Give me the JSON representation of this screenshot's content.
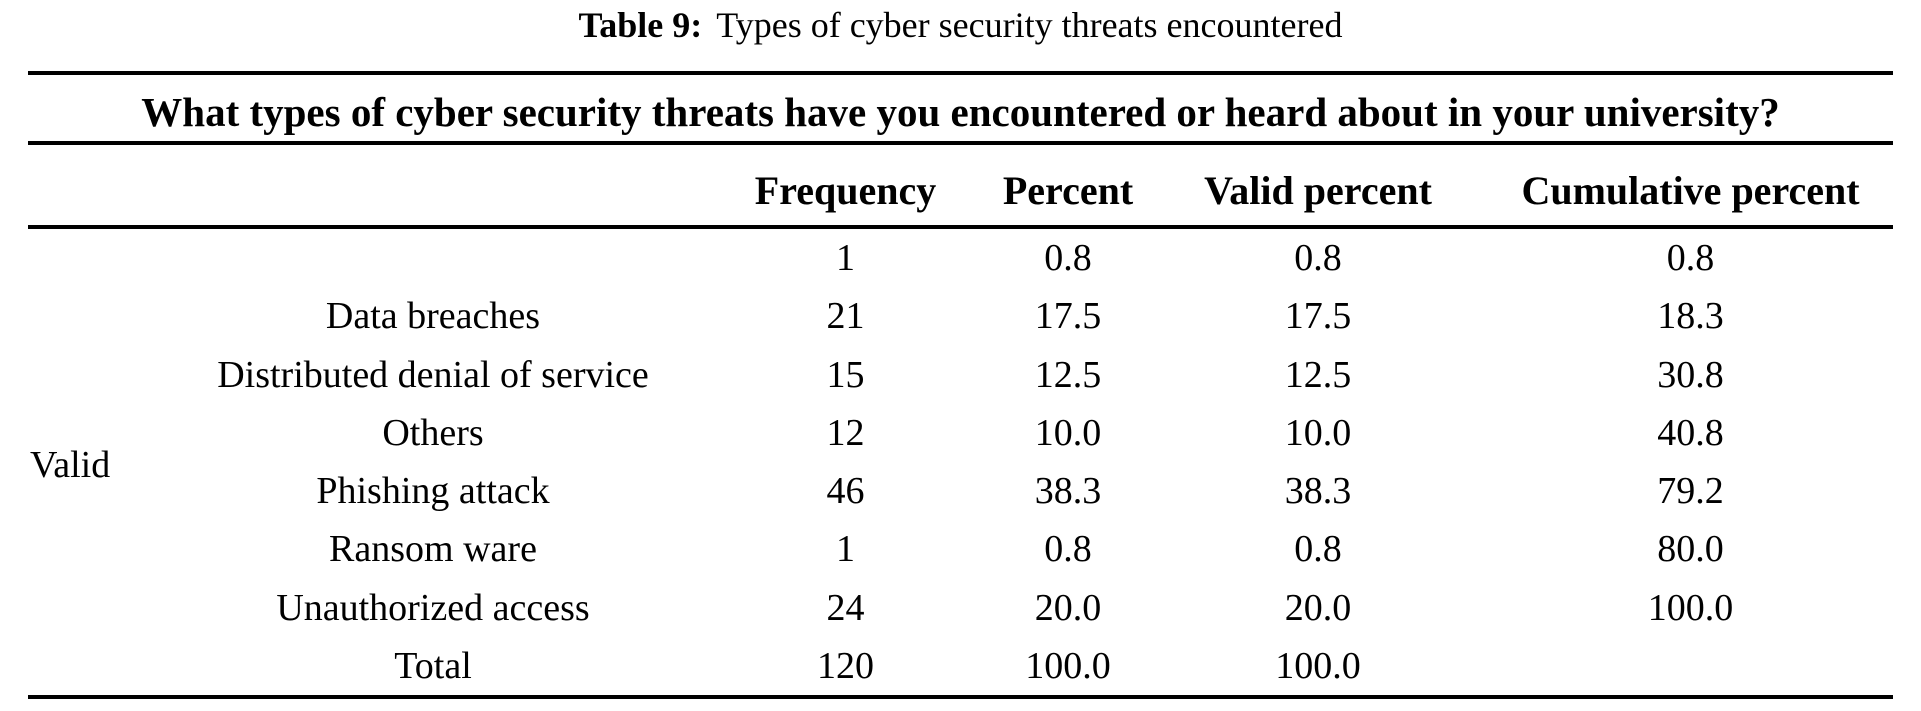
{
  "caption": {
    "label": "Table 9:",
    "text": "Types of cyber security threats encountered"
  },
  "colors": {
    "text": "#000000",
    "background": "#ffffff",
    "rule": "#000000"
  },
  "table": {
    "question": "What types of cyber security threats have you encountered or heard about in your university?",
    "group_label": "Valid",
    "columns": [
      "Frequency",
      "Percent",
      "Valid percent",
      "Cumulative percent"
    ],
    "rows": [
      {
        "label": "",
        "frequency": "1",
        "percent": "0.8",
        "valid_percent": "0.8",
        "cumulative_percent": "0.8"
      },
      {
        "label": "Data breaches",
        "frequency": "21",
        "percent": "17.5",
        "valid_percent": "17.5",
        "cumulative_percent": "18.3"
      },
      {
        "label": "Distributed denial of service",
        "frequency": "15",
        "percent": "12.5",
        "valid_percent": "12.5",
        "cumulative_percent": "30.8"
      },
      {
        "label": "Others",
        "frequency": "12",
        "percent": "10.0",
        "valid_percent": "10.0",
        "cumulative_percent": "40.8"
      },
      {
        "label": "Phishing attack",
        "frequency": "46",
        "percent": "38.3",
        "valid_percent": "38.3",
        "cumulative_percent": "79.2"
      },
      {
        "label": "Ransom ware",
        "frequency": "1",
        "percent": "0.8",
        "valid_percent": "0.8",
        "cumulative_percent": "80.0"
      },
      {
        "label": "Unauthorized access",
        "frequency": "24",
        "percent": "20.0",
        "valid_percent": "20.0",
        "cumulative_percent": "100.0"
      },
      {
        "label": "Total",
        "frequency": "120",
        "percent": "100.0",
        "valid_percent": "100.0",
        "cumulative_percent": ""
      }
    ]
  }
}
